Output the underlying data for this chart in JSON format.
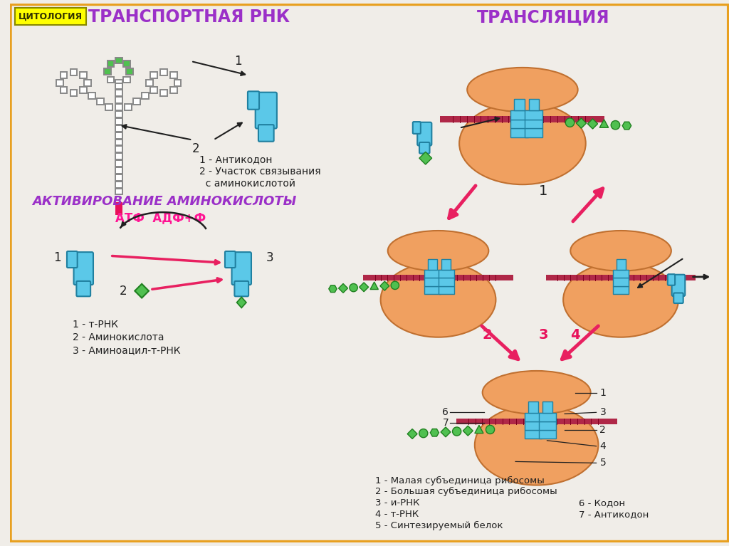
{
  "bg_color": "#f0ede8",
  "border_color": "#e8a020",
  "title_left": "ТРАНСПОРТНАЯ РНК",
  "title_right": "ТРАНСЛЯЦИЯ",
  "title_bottom_left": "АКТИВИРОВАНИЕ АМИНОКИСЛОТЫ",
  "cytology_label": "ЦИТОЛОГИЯ",
  "cytology_bg": "#ffff00",
  "title_color": "#9b30c8",
  "atf_text": "АТФ  АДФ+Ф",
  "atf_color": "#ff1493",
  "legend1_lines": [
    "1 - Антикодон",
    "2 - Участок связывания",
    "  с аминокислотой"
  ],
  "legend2_lines": [
    "1 - т-РНК",
    "2 - Аминокислота",
    "3 - Аминоацил-т-РНК"
  ],
  "legend3_lines": [
    "1 - Малая субъединица рибосомы",
    "2 - Большая субъединица рибосомы",
    "3 - и-РНК",
    "4 - т-РНК",
    "5 - Синтезируемый белок"
  ],
  "legend4_lines": [
    "6 - Кодон",
    "7 - Антикодон"
  ],
  "ribosome_color": "#f0a060",
  "ribosome_edge": "#c07030",
  "trna_color": "#5bc8e8",
  "trna_edge": "#2080a0",
  "mrna_color": "#b02848",
  "green_color": "#50c050",
  "green_edge": "#208020",
  "arrow_red": "#e82060",
  "arrow_black": "#202020",
  "text_black": "#202020",
  "pink_red": "#e8105a",
  "chain_color": "#888888"
}
